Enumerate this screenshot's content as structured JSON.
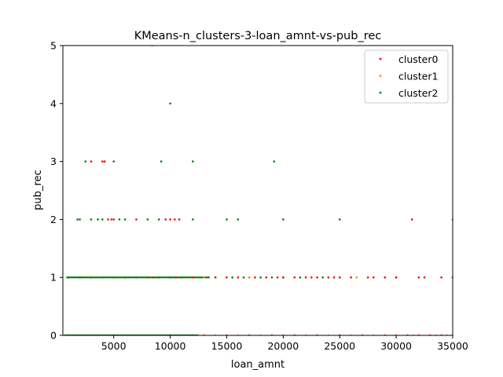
{
  "chart_data": {
    "type": "scatter",
    "title": "KMeans-n_clusters-3-loan_amnt-vs-pub_rec",
    "xlabel": "loan_amnt",
    "ylabel": "pub_rec",
    "xlim": [
      500,
      35000
    ],
    "ylim": [
      0,
      5
    ],
    "xticks": [
      5000,
      10000,
      15000,
      20000,
      25000,
      30000,
      35000
    ],
    "xtick_labels": [
      "5000",
      "10000",
      "15000",
      "20000",
      "25000",
      "30000",
      "35000"
    ],
    "yticks": [
      0,
      1,
      2,
      3,
      4,
      5
    ],
    "ytick_labels": [
      "0",
      "1",
      "2",
      "3",
      "4",
      "5"
    ],
    "legend_position": "top-right",
    "series": [
      {
        "name": "cluster0",
        "color": "#ff0000",
        "points": [
          [
            3000,
            3
          ],
          [
            4000,
            3
          ],
          [
            4200,
            3
          ],
          [
            4500,
            2
          ],
          [
            4800,
            2
          ],
          [
            5000,
            2
          ],
          [
            7000,
            2
          ],
          [
            9600,
            2
          ],
          [
            10000,
            2
          ],
          [
            10400,
            2
          ],
          [
            10800,
            2
          ],
          [
            31400,
            2
          ],
          [
            35000,
            2
          ],
          [
            8500,
            1
          ],
          [
            10500,
            1
          ],
          [
            12000,
            1
          ],
          [
            14000,
            1
          ],
          [
            15000,
            1
          ],
          [
            16000,
            1
          ],
          [
            17500,
            1
          ],
          [
            18500,
            1
          ],
          [
            19500,
            1
          ],
          [
            20000,
            1
          ],
          [
            21000,
            1
          ],
          [
            22000,
            1
          ],
          [
            22500,
            1
          ],
          [
            23000,
            1
          ],
          [
            24000,
            1
          ],
          [
            24500,
            1
          ],
          [
            25000,
            1
          ],
          [
            26000,
            1
          ],
          [
            27500,
            1
          ],
          [
            28000,
            1
          ],
          [
            29000,
            1
          ],
          [
            30000,
            1
          ],
          [
            32000,
            1
          ],
          [
            32500,
            1
          ],
          [
            34000,
            1
          ],
          [
            35000,
            1
          ],
          [
            13000,
            0
          ],
          [
            15000,
            0
          ],
          [
            17000,
            0
          ],
          [
            19000,
            0
          ],
          [
            21000,
            0
          ],
          [
            23000,
            0
          ],
          [
            25000,
            0
          ],
          [
            27000,
            0
          ],
          [
            29000,
            0
          ],
          [
            31000,
            0
          ],
          [
            32000,
            0
          ],
          [
            33000,
            0
          ],
          [
            34000,
            0
          ],
          [
            35000,
            0
          ]
        ]
      },
      {
        "name": "cluster1",
        "color": "#ff8c00",
        "points": [
          [
            8400,
            5
          ],
          [
            13000,
            1
          ],
          [
            17000,
            1
          ],
          [
            21000,
            1
          ],
          [
            26500,
            1
          ],
          [
            14000,
            0
          ],
          [
            16000,
            0
          ],
          [
            18000,
            0
          ],
          [
            20000,
            0
          ],
          [
            22000,
            0
          ],
          [
            24000,
            0
          ],
          [
            26000,
            0
          ],
          [
            28000,
            0
          ],
          [
            30000,
            0
          ],
          [
            31500,
            0
          ],
          [
            33500,
            0
          ],
          [
            34500,
            0
          ]
        ]
      },
      {
        "name": "cluster2",
        "color": "#008000",
        "points": [
          [
            10000,
            4
          ],
          [
            2500,
            3
          ],
          [
            5000,
            3
          ],
          [
            9200,
            3
          ],
          [
            12000,
            3
          ],
          [
            19200,
            3
          ],
          [
            1800,
            2
          ],
          [
            2000,
            2
          ],
          [
            3000,
            2
          ],
          [
            3600,
            2
          ],
          [
            4000,
            2
          ],
          [
            5500,
            2
          ],
          [
            6000,
            2
          ],
          [
            8000,
            2
          ],
          [
            9000,
            2
          ],
          [
            12000,
            2
          ],
          [
            15000,
            2
          ],
          [
            16000,
            2
          ],
          [
            20000,
            2
          ],
          [
            25000,
            2
          ],
          [
            1000,
            1
          ],
          [
            2000,
            1
          ],
          [
            3000,
            1
          ],
          [
            4000,
            1
          ],
          [
            5000,
            1
          ],
          [
            6000,
            1
          ],
          [
            7000,
            1
          ],
          [
            8000,
            1
          ],
          [
            9000,
            1
          ],
          [
            10000,
            1
          ],
          [
            11000,
            1
          ],
          [
            12000,
            1
          ],
          [
            13000,
            1
          ],
          [
            14000,
            1
          ],
          [
            15500,
            1
          ],
          [
            16500,
            1
          ],
          [
            17000,
            1
          ],
          [
            18000,
            1
          ],
          [
            19000,
            1
          ],
          [
            20000,
            1
          ],
          [
            21500,
            1
          ],
          [
            23500,
            1
          ],
          [
            25000,
            1
          ],
          [
            30000,
            1
          ],
          [
            35000,
            1
          ],
          [
            1000,
            0
          ],
          [
            2000,
            0
          ],
          [
            3000,
            0
          ],
          [
            4000,
            0
          ],
          [
            5000,
            0
          ],
          [
            6000,
            0
          ],
          [
            7000,
            0
          ],
          [
            8000,
            0
          ],
          [
            9000,
            0
          ],
          [
            10000,
            0
          ],
          [
            11000,
            0
          ],
          [
            12000,
            0
          ]
        ],
        "dense_bands": [
          {
            "y": 1,
            "x_from": 800,
            "x_to": 13500
          },
          {
            "y": 0,
            "x_from": 600,
            "x_to": 12500
          }
        ]
      }
    ]
  }
}
